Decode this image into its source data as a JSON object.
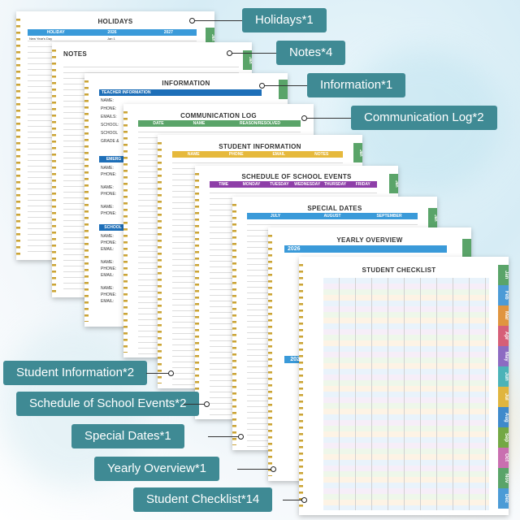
{
  "pages": {
    "holidays": {
      "title": "HOLIDAYS",
      "cols": [
        "HOLIDAY",
        "2026",
        "2027"
      ],
      "tab": "Jan",
      "first_row": "New Year's Day",
      "first_val": "Jan 1"
    },
    "notes": {
      "title": "NOTES",
      "tab": "Jan"
    },
    "information": {
      "title": "INFORMATION",
      "section": "TEACHER INFORMATION",
      "fields": [
        "NAME:",
        "PHONE:",
        "EMAILS:",
        "SCHOOL:",
        "SCHOOL",
        "GRADE &"
      ],
      "emerg": "EMERG",
      "emerg_fields": [
        "NAME:",
        "PHONE:",
        "NAME:",
        "PHONE:",
        "NAME:",
        "PHONE:"
      ],
      "school": "SCHOOL",
      "school_fields": [
        "NAME:",
        "PHONE:",
        "EMAIL:",
        "NAME:",
        "PHONE:",
        "EMAIL:",
        "NAME:",
        "PHONE:",
        "EMAIL:"
      ]
    },
    "comm": {
      "title": "COMMUNICATION LOG",
      "cols": [
        "DATE",
        "NAME",
        "REASON/RESOLVED"
      ]
    },
    "student": {
      "title": "STUDENT INFORMATION",
      "cols": [
        "NAME",
        "PHONE",
        "EMAIL",
        "NOTES"
      ],
      "tab": "Jan"
    },
    "schedule": {
      "title": "SCHEDULE OF SCHOOL EVENTS",
      "cols": [
        "TIME",
        "MONDAY",
        "TUESDAY",
        "WEDNESDAY",
        "THURSDAY",
        "FRIDAY"
      ],
      "tab": "Jan"
    },
    "special": {
      "title": "SPECIAL DATES",
      "cols": [
        "JULY",
        "AUGUST",
        "SEPTEMBER"
      ],
      "tab": "Jan"
    },
    "yearly": {
      "title": "YEARLY OVERVIEW",
      "year": "2026",
      "year2": "2027"
    },
    "checklist": {
      "title": "STUDENT CHECKLIST",
      "months": [
        "Jan",
        "Feb",
        "Mar",
        "Apr",
        "May",
        "Jun",
        "Jul",
        "Aug",
        "Sep",
        "Oct",
        "Nov",
        "Dec"
      ],
      "month_colors": [
        "#5aa469",
        "#4c9bd6",
        "#e0953f",
        "#d65f78",
        "#8d6bc2",
        "#4cb3b8",
        "#e0b53f",
        "#3f8acb",
        "#74a844",
        "#c96fb0",
        "#5aa469",
        "#4c9bd6"
      ]
    }
  },
  "labels": [
    "Holidays*1",
    "Notes*4",
    "Information*1",
    "Communication Log*2",
    "Student Information*2",
    "Schedule of School Events*2",
    "Special Dates*1",
    "Yearly Overview*1",
    "Student Checklist*14"
  ]
}
